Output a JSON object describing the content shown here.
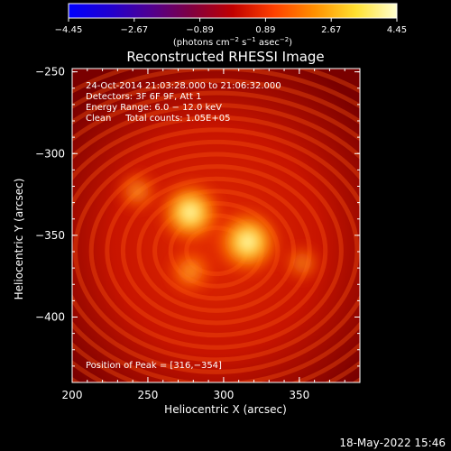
{
  "chart_data": {
    "type": "heatmap",
    "title": "Reconstructed RHESSI Image",
    "xlabel": "Heliocentric X (arcsec)",
    "ylabel": "Heliocentric Y (arcsec)",
    "xlim": [
      200,
      390
    ],
    "ylim": [
      -440,
      -248
    ],
    "x_ticks": [
      200,
      250,
      300,
      350
    ],
    "y_ticks": [
      -250,
      -300,
      -350,
      -400
    ],
    "x_tick_labels": [
      "200",
      "250",
      "300",
      "350"
    ],
    "y_tick_labels": [
      "−250",
      "−300",
      "−350",
      "−400"
    ],
    "colorbar": {
      "min": -4.45,
      "max": 4.45,
      "tick_labels": [
        "−4.45",
        "−2.67",
        "−0.89",
        "0.89",
        "2.67",
        "4.45"
      ],
      "ticks": [
        -4.45,
        -2.67,
        -0.89,
        0.89,
        2.67,
        4.45
      ],
      "label_prefix": "(photons cm",
      "label_sup1": "−2",
      "label_mid1": " s",
      "label_sup2": "−1",
      "label_mid2": " asec",
      "label_sup3": "−2",
      "label_suffix": ")"
    },
    "annotations": [
      "24‑Oct‑2014 21:03:28.000 to 21:06:32.000",
      "Detectors: 3F 6F 9F, Att 1",
      "Energy Range: 6.0 − 12.0 keV",
      "Clean     Total counts: 1.05E+05"
    ],
    "peak_label": "Position of Peak = [316,−354]",
    "peak": [
      316,
      -354
    ],
    "sources": [
      {
        "x": 316,
        "y": -354,
        "relative_intensity": 1.0
      },
      {
        "x": 278,
        "y": -336,
        "relative_intensity": 0.95
      },
      {
        "x": 278,
        "y": -372,
        "relative_intensity": 0.55
      },
      {
        "x": 243,
        "y": -323,
        "relative_intensity": 0.45
      },
      {
        "x": 352,
        "y": -367,
        "relative_intensity": 0.35
      }
    ],
    "colormap": [
      "#0000ff",
      "#2000d0",
      "#500090",
      "#800040",
      "#c00000",
      "#ff4000",
      "#ff9000",
      "#ffe030",
      "#ffffd0"
    ],
    "grid": false
  },
  "footer_date": "18‑May‑2022 15:46"
}
